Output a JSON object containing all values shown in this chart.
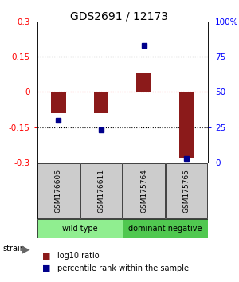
{
  "title": "GDS2691 / 12173",
  "samples": [
    "GSM176606",
    "GSM176611",
    "GSM175764",
    "GSM175765"
  ],
  "log10_ratio": [
    -0.09,
    -0.09,
    0.08,
    -0.28
  ],
  "percentile_rank": [
    30,
    23,
    83,
    3
  ],
  "groups": [
    {
      "label": "wild type",
      "indices": [
        0,
        1
      ],
      "color": "#90ee90"
    },
    {
      "label": "dominant negative",
      "indices": [
        2,
        3
      ],
      "color": "#50c850"
    }
  ],
  "ylim_left": [
    -0.3,
    0.3
  ],
  "ylim_right": [
    0,
    100
  ],
  "yticks_left": [
    -0.3,
    -0.15,
    0,
    0.15,
    0.3
  ],
  "yticks_right": [
    0,
    25,
    50,
    75,
    100
  ],
  "hlines": [
    -0.15,
    0,
    0.15
  ],
  "bar_color": "#8b1a1a",
  "dot_color": "#00008b",
  "bar_width": 0.35,
  "background_color": "#ffffff",
  "title_fontsize": 10,
  "tick_fontsize": 7.5,
  "sample_fontsize": 6.5,
  "group_fontsize": 7,
  "legend_fontsize": 7
}
